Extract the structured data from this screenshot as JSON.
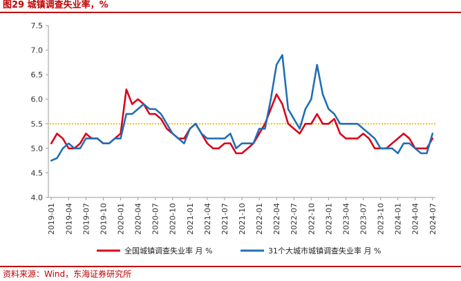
{
  "header": {
    "title": "图29  城镇调查失业率，%"
  },
  "footer": {
    "source": "资料来源：Wind，东海证券研究所"
  },
  "colors": {
    "series_national": "#d9001b",
    "series_31": "#1f6fb5",
    "reference": "#f2c200",
    "axis": "#999999",
    "rule": "#c00000"
  },
  "chart_data": {
    "type": "line",
    "title": "",
    "xlabel": "",
    "ylabel": "",
    "ylim": [
      4.0,
      7.5
    ],
    "yticks": [
      "4.0",
      "4.5",
      "5.0",
      "5.5",
      "6.0",
      "6.5",
      "7.0",
      "7.5"
    ],
    "xtick_labels": [
      "2019-01",
      "2019-04",
      "2019-07",
      "2019-10",
      "2020-01",
      "2020-04",
      "2020-07",
      "2020-10",
      "2021-01",
      "2021-04",
      "2021-07",
      "2021-10",
      "2022-01",
      "2022-04",
      "2022-07",
      "2022-10",
      "2023-01",
      "2023-04",
      "2023-07",
      "2023-10",
      "2024-01",
      "2024-04",
      "2024-07"
    ],
    "x": [
      "2019-01",
      "2019-02",
      "2019-03",
      "2019-04",
      "2019-05",
      "2019-06",
      "2019-07",
      "2019-08",
      "2019-09",
      "2019-10",
      "2019-11",
      "2019-12",
      "2020-01",
      "2020-02",
      "2020-03",
      "2020-04",
      "2020-05",
      "2020-06",
      "2020-07",
      "2020-08",
      "2020-09",
      "2020-10",
      "2020-11",
      "2020-12",
      "2021-01",
      "2021-02",
      "2021-03",
      "2021-04",
      "2021-05",
      "2021-06",
      "2021-07",
      "2021-08",
      "2021-09",
      "2021-10",
      "2021-11",
      "2021-12",
      "2022-01",
      "2022-02",
      "2022-03",
      "2022-04",
      "2022-05",
      "2022-06",
      "2022-07",
      "2022-08",
      "2022-09",
      "2022-10",
      "2022-11",
      "2022-12",
      "2023-01",
      "2023-02",
      "2023-03",
      "2023-04",
      "2023-05",
      "2023-06",
      "2023-07",
      "2023-08",
      "2023-09",
      "2023-10",
      "2023-11",
      "2023-12",
      "2024-01",
      "2024-02",
      "2024-03",
      "2024-04",
      "2024-05",
      "2024-06",
      "2024-07"
    ],
    "series": [
      {
        "name": "全国城镇调查失业率 月 %",
        "values": [
          5.1,
          5.3,
          5.2,
          5.0,
          5.0,
          5.1,
          5.3,
          5.2,
          5.2,
          5.1,
          5.1,
          5.2,
          5.3,
          6.2,
          5.9,
          6.0,
          5.9,
          5.7,
          5.7,
          5.6,
          5.4,
          5.3,
          5.2,
          5.2,
          5.4,
          5.5,
          5.3,
          5.1,
          5.0,
          5.0,
          5.1,
          5.1,
          4.9,
          4.9,
          5.0,
          5.1,
          5.3,
          5.5,
          5.8,
          6.1,
          5.9,
          5.5,
          5.4,
          5.3,
          5.5,
          5.5,
          5.7,
          5.5,
          5.5,
          5.6,
          5.3,
          5.2,
          5.2,
          5.2,
          5.3,
          5.2,
          5.0,
          5.0,
          5.0,
          5.1,
          5.2,
          5.3,
          5.2,
          5.0,
          5.0,
          5.0,
          5.2
        ]
      },
      {
        "name": "31个大城市城镇调查失业率 月 %",
        "values": [
          4.75,
          4.8,
          5.0,
          5.1,
          5.0,
          5.0,
          5.2,
          5.2,
          5.2,
          5.1,
          5.1,
          5.2,
          5.2,
          5.7,
          5.7,
          5.8,
          5.9,
          5.8,
          5.8,
          5.7,
          5.5,
          5.3,
          5.2,
          5.1,
          5.4,
          5.5,
          5.3,
          5.2,
          5.2,
          5.2,
          5.2,
          5.3,
          5.0,
          5.1,
          5.1,
          5.1,
          5.4,
          5.4,
          6.0,
          6.7,
          6.9,
          5.8,
          5.6,
          5.4,
          5.8,
          6.0,
          6.7,
          6.1,
          5.8,
          5.7,
          5.5,
          5.5,
          5.5,
          5.5,
          5.4,
          5.3,
          5.2,
          5.0,
          5.0,
          5.0,
          4.9,
          5.1,
          5.1,
          5.0,
          4.9,
          4.9,
          5.3
        ]
      }
    ],
    "reference_line": {
      "value": 5.5
    },
    "legend_position": "bottom",
    "grid": false
  }
}
